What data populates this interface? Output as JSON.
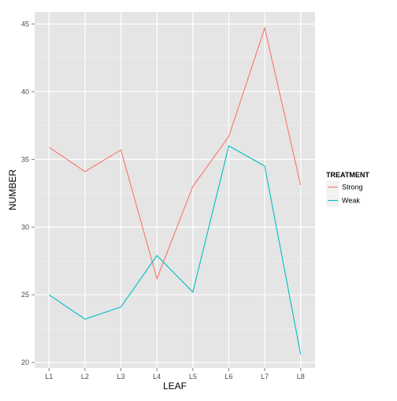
{
  "chart_data": {
    "type": "line",
    "title": "",
    "xlabel": "LEAF",
    "ylabel": "NUMBER",
    "categories": [
      "L1",
      "L2",
      "L3",
      "L4",
      "L5",
      "L6",
      "L7",
      "L8"
    ],
    "ylim": [
      19.6,
      45.9
    ],
    "yticks": [
      20,
      25,
      30,
      35,
      40,
      45
    ],
    "ytick_labels": [
      "20",
      "25",
      "30",
      "35",
      "40",
      "45"
    ],
    "grid": true,
    "legend": {
      "title": "TREATMENT",
      "placement": "right"
    },
    "series": [
      {
        "name": "Strong",
        "color": "#f8766d",
        "values": [
          35.9,
          34.1,
          35.7,
          26.2,
          33.0,
          36.7,
          44.7,
          33.1
        ]
      },
      {
        "name": "Weak",
        "color": "#00bfc4",
        "values": [
          25.0,
          23.2,
          24.1,
          27.9,
          25.2,
          36.0,
          34.5,
          20.6
        ]
      }
    ],
    "colors": {
      "panel_background": "#e5e5e5",
      "grid_major": "#ffffff",
      "grid_minor": "#f2f2f2"
    }
  }
}
